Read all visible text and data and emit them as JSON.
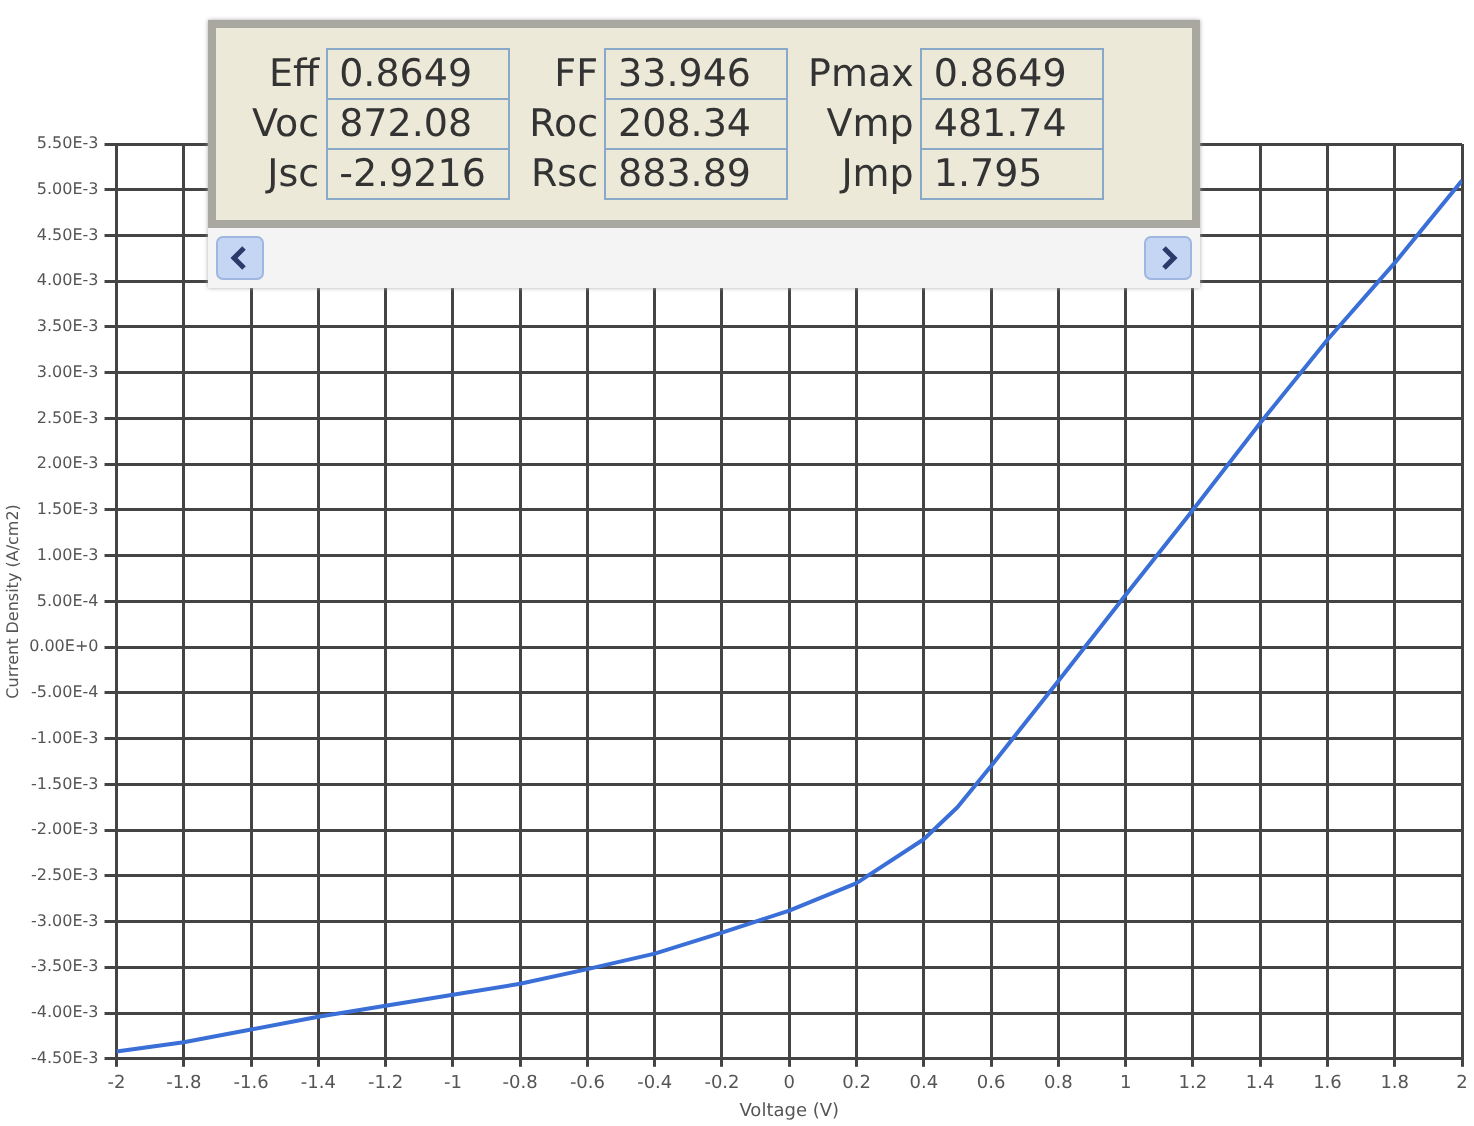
{
  "chart_data": {
    "type": "line",
    "xlabel": "Voltage (V)",
    "ylabel": "Current Density (A/cm2)",
    "annotations": [
      "Eff",
      "0.8649",
      "FF",
      "33.946",
      "Pmax",
      "0.8649",
      "Voc",
      "872.08",
      "Roc",
      "208.34",
      "Vmp",
      "481.74",
      "Jsc",
      "-2.9216",
      "Rsc",
      "883.89",
      "Jmp",
      "1.795"
    ],
    "x": [
      -2,
      -1.8,
      -1.6,
      -1.4,
      -1.2,
      -1.0,
      -0.8,
      -0.6,
      -0.4,
      -0.2,
      0,
      0.2,
      0.4,
      0.5,
      0.6,
      0.8,
      1.0,
      1.2,
      1.4,
      1.6,
      1.8,
      2.0
    ],
    "series": [
      {
        "color": "#3a6fd8",
        "values": [
          -0.00442,
          -0.00432,
          -0.00418,
          -0.00404,
          -0.00392,
          -0.0038,
          -0.00368,
          -0.00352,
          -0.00335,
          -0.00312,
          -0.00288,
          -0.00258,
          -0.0021,
          -0.00175,
          -0.0013,
          -0.00037,
          0.00057,
          0.0015,
          0.00245,
          0.00336,
          0.0042,
          0.0051
        ]
      }
    ],
    "xlim": [
      -2,
      2
    ],
    "xticks": [
      -2,
      -1.8,
      -1.6,
      -1.4,
      -1.2,
      -1,
      -0.8,
      -0.6,
      -0.4,
      -0.2,
      0,
      0.2,
      0.4,
      0.6,
      0.8,
      1,
      1.2,
      1.4,
      1.6,
      1.8,
      2
    ],
    "ylim": [
      -0.0045,
      0.0055
    ],
    "yticks": [
      {
        "value": -0.0045,
        "label": "-4.50E-3"
      },
      {
        "value": -0.004,
        "label": "-4.00E-3"
      },
      {
        "value": -0.0035,
        "label": "-3.50E-3"
      },
      {
        "value": -0.003,
        "label": "-3.00E-3"
      },
      {
        "value": -0.0025,
        "label": "-2.50E-3"
      },
      {
        "value": -0.002,
        "label": "-2.00E-3"
      },
      {
        "value": -0.0015,
        "label": "-1.50E-3"
      },
      {
        "value": -0.001,
        "label": "-1.00E-3"
      },
      {
        "value": -0.0005,
        "label": "-5.00E-4"
      },
      {
        "value": 0,
        "label": "0.00E+0"
      },
      {
        "value": 0.0005,
        "label": "5.00E-4"
      },
      {
        "value": 0.001,
        "label": "1.00E-3"
      },
      {
        "value": 0.0015,
        "label": "1.50E-3"
      },
      {
        "value": 0.002,
        "label": "2.00E-3"
      },
      {
        "value": 0.0025,
        "label": "2.50E-3"
      },
      {
        "value": 0.003,
        "label": "3.00E-3"
      },
      {
        "value": 0.0035,
        "label": "3.50E-3"
      },
      {
        "value": 0.004,
        "label": "4.00E-3"
      },
      {
        "value": 0.0045,
        "label": "4.50E-3"
      },
      {
        "value": 0.005,
        "label": "5.00E-3"
      },
      {
        "value": 0.0055,
        "label": "5.50E-3"
      }
    ],
    "grid": true,
    "legend": false,
    "marker": "none",
    "line_style": "solid"
  }
}
